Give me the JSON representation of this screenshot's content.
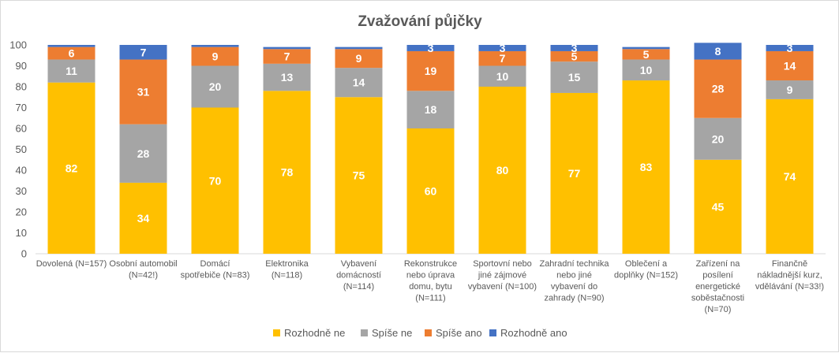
{
  "chart_data": {
    "type": "bar",
    "stacked": true,
    "title": "Zvažování půjčky",
    "ylim": [
      0,
      100
    ],
    "yticks": [
      0,
      10,
      20,
      30,
      40,
      50,
      60,
      70,
      80,
      90,
      100
    ],
    "grid": false,
    "legend_position": "bottom",
    "categories": [
      [
        "Dovolená (N=157)"
      ],
      [
        "Osobní automobil",
        "(N=42!)"
      ],
      [
        "Domácí",
        "spotřebiče (N=83)"
      ],
      [
        "Elektronika",
        "(N=118)"
      ],
      [
        "Vybavení",
        "domácností",
        "(N=114)"
      ],
      [
        "Rekonstrukce",
        "nebo úprava",
        "domu, bytu",
        "(N=111)"
      ],
      [
        "Sportovní nebo",
        "jiné zájmové",
        "vybavení (N=100)"
      ],
      [
        "Zahradní technika",
        "nebo jiné",
        "vybavení do",
        "zahrady (N=90)"
      ],
      [
        "Oblečení a",
        "doplňky (N=152)"
      ],
      [
        "Zařízení na",
        "posílení",
        "energetické",
        "soběstačnosti",
        "(N=70)"
      ],
      [
        "Finančně",
        "nákladnější kurz,",
        "vdělávání (N=33!)"
      ]
    ],
    "series": [
      {
        "name": "Rozhodně ne",
        "color": "#FFC000",
        "values": [
          82,
          34,
          70,
          78,
          75,
          60,
          80,
          77,
          83,
          45,
          74
        ]
      },
      {
        "name": "Spíše ne",
        "color": "#A5A5A5",
        "values": [
          11,
          28,
          20,
          13,
          14,
          18,
          10,
          15,
          10,
          20,
          9
        ]
      },
      {
        "name": "Spíše ano",
        "color": "#ED7D31",
        "values": [
          6,
          31,
          9,
          7,
          9,
          19,
          7,
          5,
          5,
          28,
          14
        ]
      },
      {
        "name": "Rozhodně ano",
        "color": "#4472C4",
        "values": [
          1,
          7,
          1,
          1,
          1,
          3,
          3,
          3,
          1,
          8,
          3
        ]
      }
    ]
  }
}
